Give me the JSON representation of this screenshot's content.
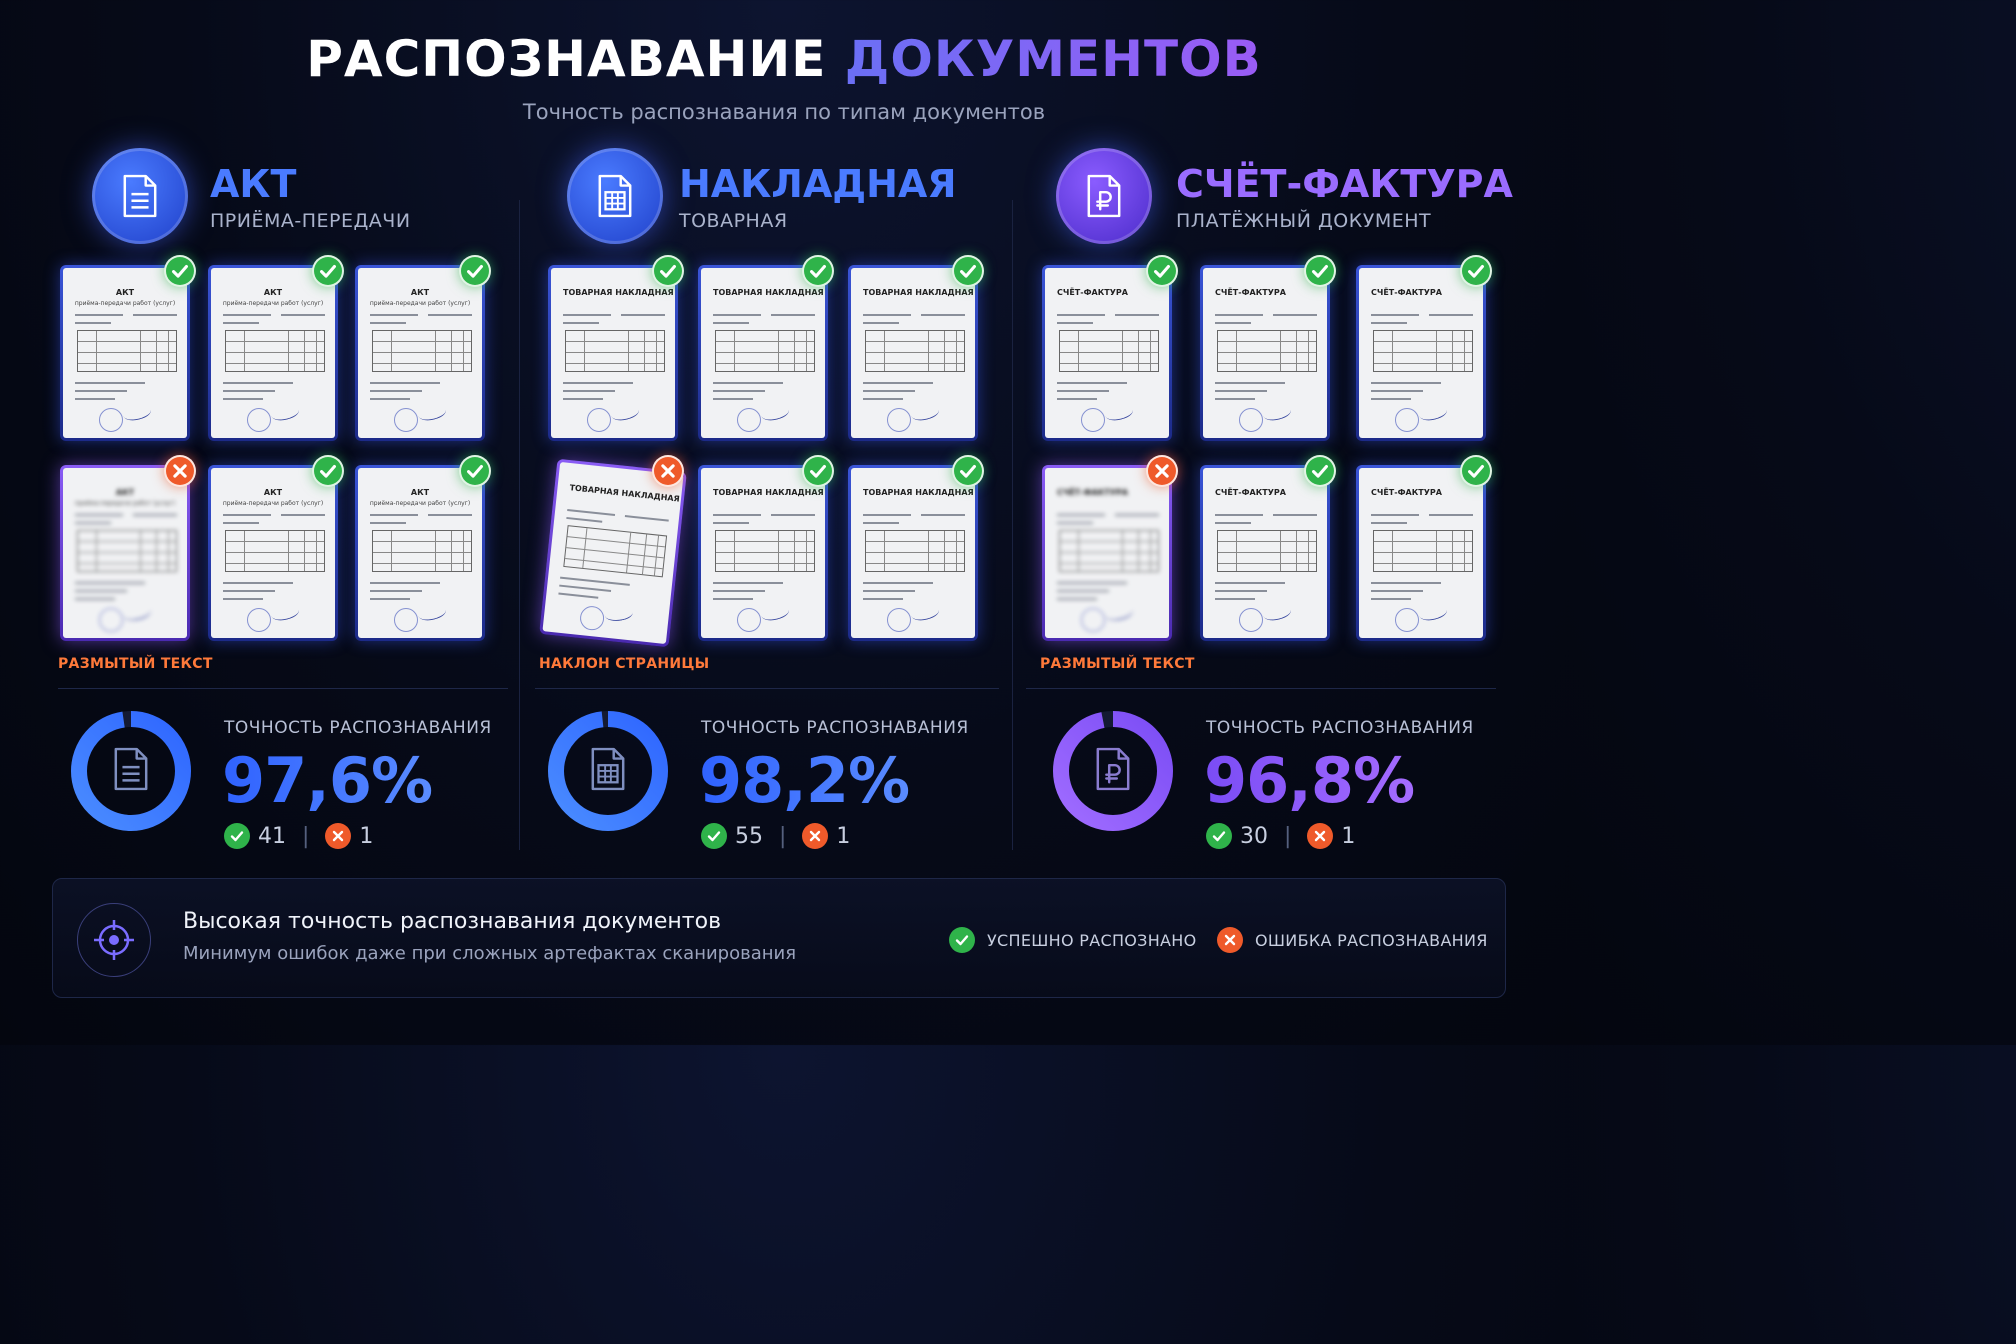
{
  "header": {
    "title_part1": "РАСПОЗНАВАНИЕ",
    "title_part2": "ДОКУМЕНТОВ",
    "subtitle": "Точность распознавания по типам документов"
  },
  "sections": [
    {
      "title": "АКТ",
      "subtitle": "ПРИЁМА-ПЕРЕДАЧИ",
      "icon": "document-lines-icon",
      "accent": "#3a66ff",
      "doc_title": "АКТ",
      "doc_subtitle": "приёма-передачи работ (услуг)",
      "error_label": "РАЗМЫТЫЙ ТЕКСТ",
      "accuracy_label": "ТОЧНОСТЬ РАСПОЗНАВАНИЯ",
      "accuracy_value": "97,6%",
      "accuracy_fraction": 0.976,
      "success_count": "41",
      "error_count": "1"
    },
    {
      "title": "НАКЛАДНАЯ",
      "subtitle": "ТОВАРНАЯ",
      "icon": "table-document-icon",
      "accent": "#3a66ff",
      "doc_title": "ТОВАРНАЯ НАКЛАДНАЯ",
      "doc_subtitle": "",
      "error_label": "НАКЛОН СТРАНИЦЫ",
      "accuracy_label": "ТОЧНОСТЬ РАСПОЗНАВАНИЯ",
      "accuracy_value": "98,2%",
      "accuracy_fraction": 0.982,
      "success_count": "55",
      "error_count": "1"
    },
    {
      "title": "СЧЁТ-ФАКТУРА",
      "subtitle": "ПЛАТЁЖНЫЙ ДОКУМЕНТ",
      "icon": "ruble-document-icon",
      "accent": "#8a4df5",
      "doc_title": "СЧЁТ-ФАКТУРА",
      "doc_subtitle": "",
      "error_label": "РАЗМЫТЫЙ ТЕКСТ",
      "accuracy_label": "ТОЧНОСТЬ РАСПОЗНАВАНИЯ",
      "accuracy_value": "96,8%",
      "accuracy_fraction": 0.968,
      "success_count": "30",
      "error_count": "1"
    }
  ],
  "footer": {
    "title": "Высокая точность распознавания документов",
    "subtitle": "Минимум ошибок даже при сложных артефактах сканирования",
    "icon": "target-icon",
    "legend_success": "УСПЕШНО РАСПОЗНАНО",
    "legend_error": "ОШИБКА РАСПОЗНАВАНИЯ"
  },
  "colors": {
    "success": "#2fb34a",
    "error": "#ef5a2a",
    "error_label": "#ff7a3a"
  }
}
